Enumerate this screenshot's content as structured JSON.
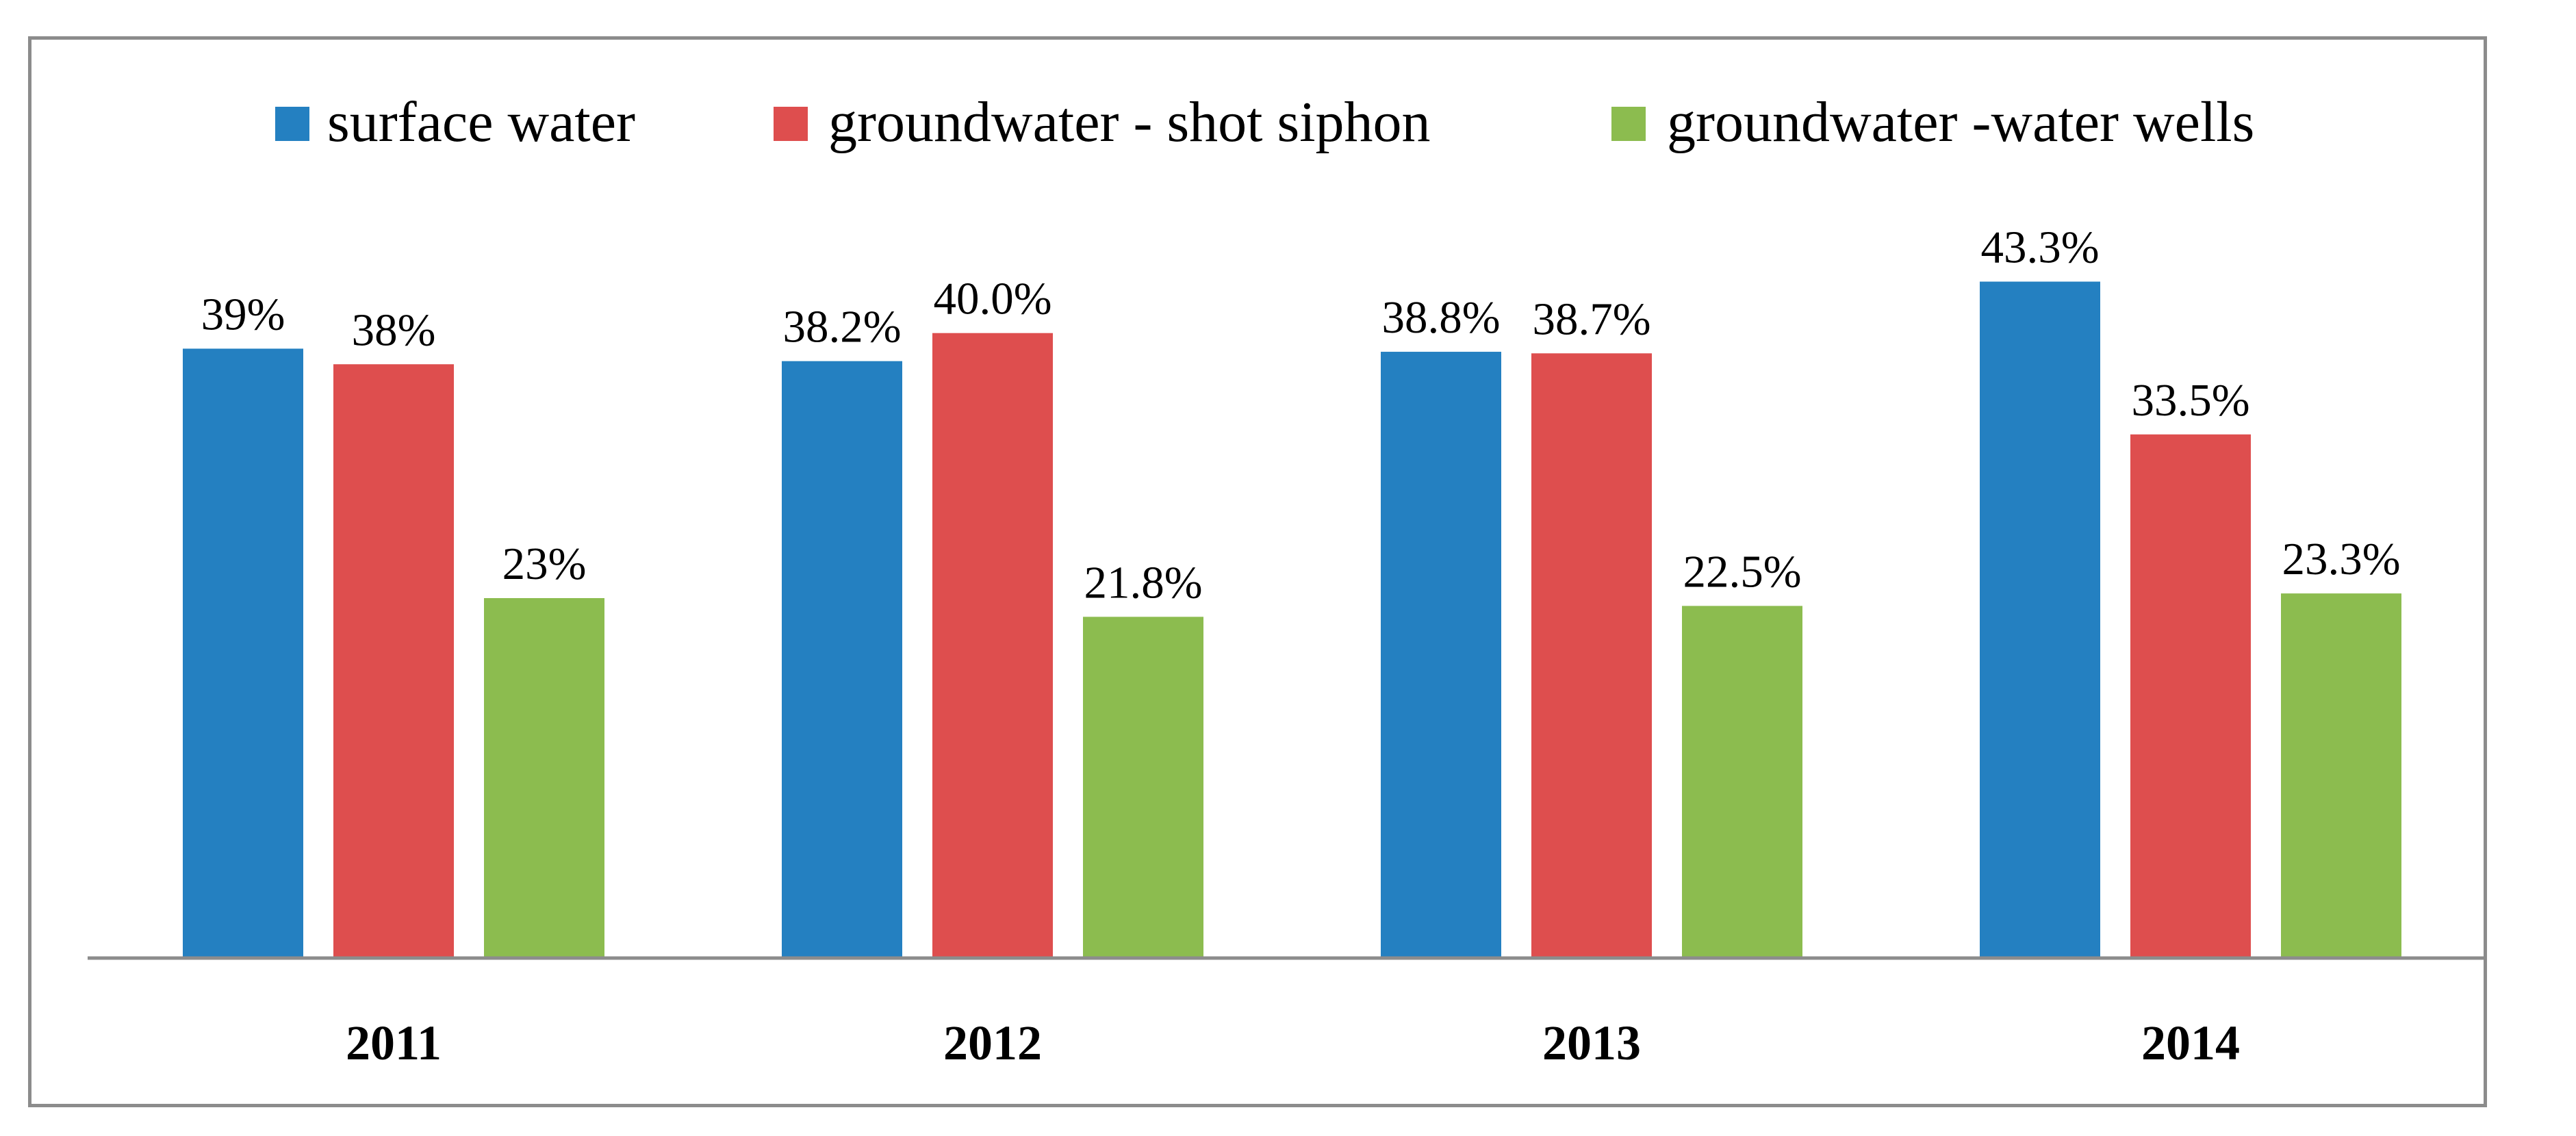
{
  "chart_data": {
    "type": "bar",
    "title": "",
    "xlabel": "",
    "ylabel": "",
    "ylim": [
      0,
      46
    ],
    "grid": false,
    "legend_position": "top",
    "categories": [
      "2011",
      "2012",
      "2013",
      "2014"
    ],
    "series": [
      {
        "name": "surface water",
        "color": "#2480c1",
        "values": [
          39,
          38.2,
          38.8,
          43.3
        ],
        "labels": [
          "39%",
          "38.2%",
          "38.8%",
          "43.3%"
        ]
      },
      {
        "name": "groundwater - shot siphon",
        "color": "#de4e4e",
        "values": [
          38,
          40.0,
          38.7,
          33.5
        ],
        "labels": [
          "38%",
          "40.0%",
          "38.7%",
          "33.5%"
        ]
      },
      {
        "name": "groundwater -water wells",
        "color": "#8cbc4f",
        "values": [
          23,
          21.8,
          22.5,
          23.3
        ],
        "labels": [
          "23%",
          "21.8%",
          "22.5%",
          "23.3%"
        ]
      }
    ]
  }
}
